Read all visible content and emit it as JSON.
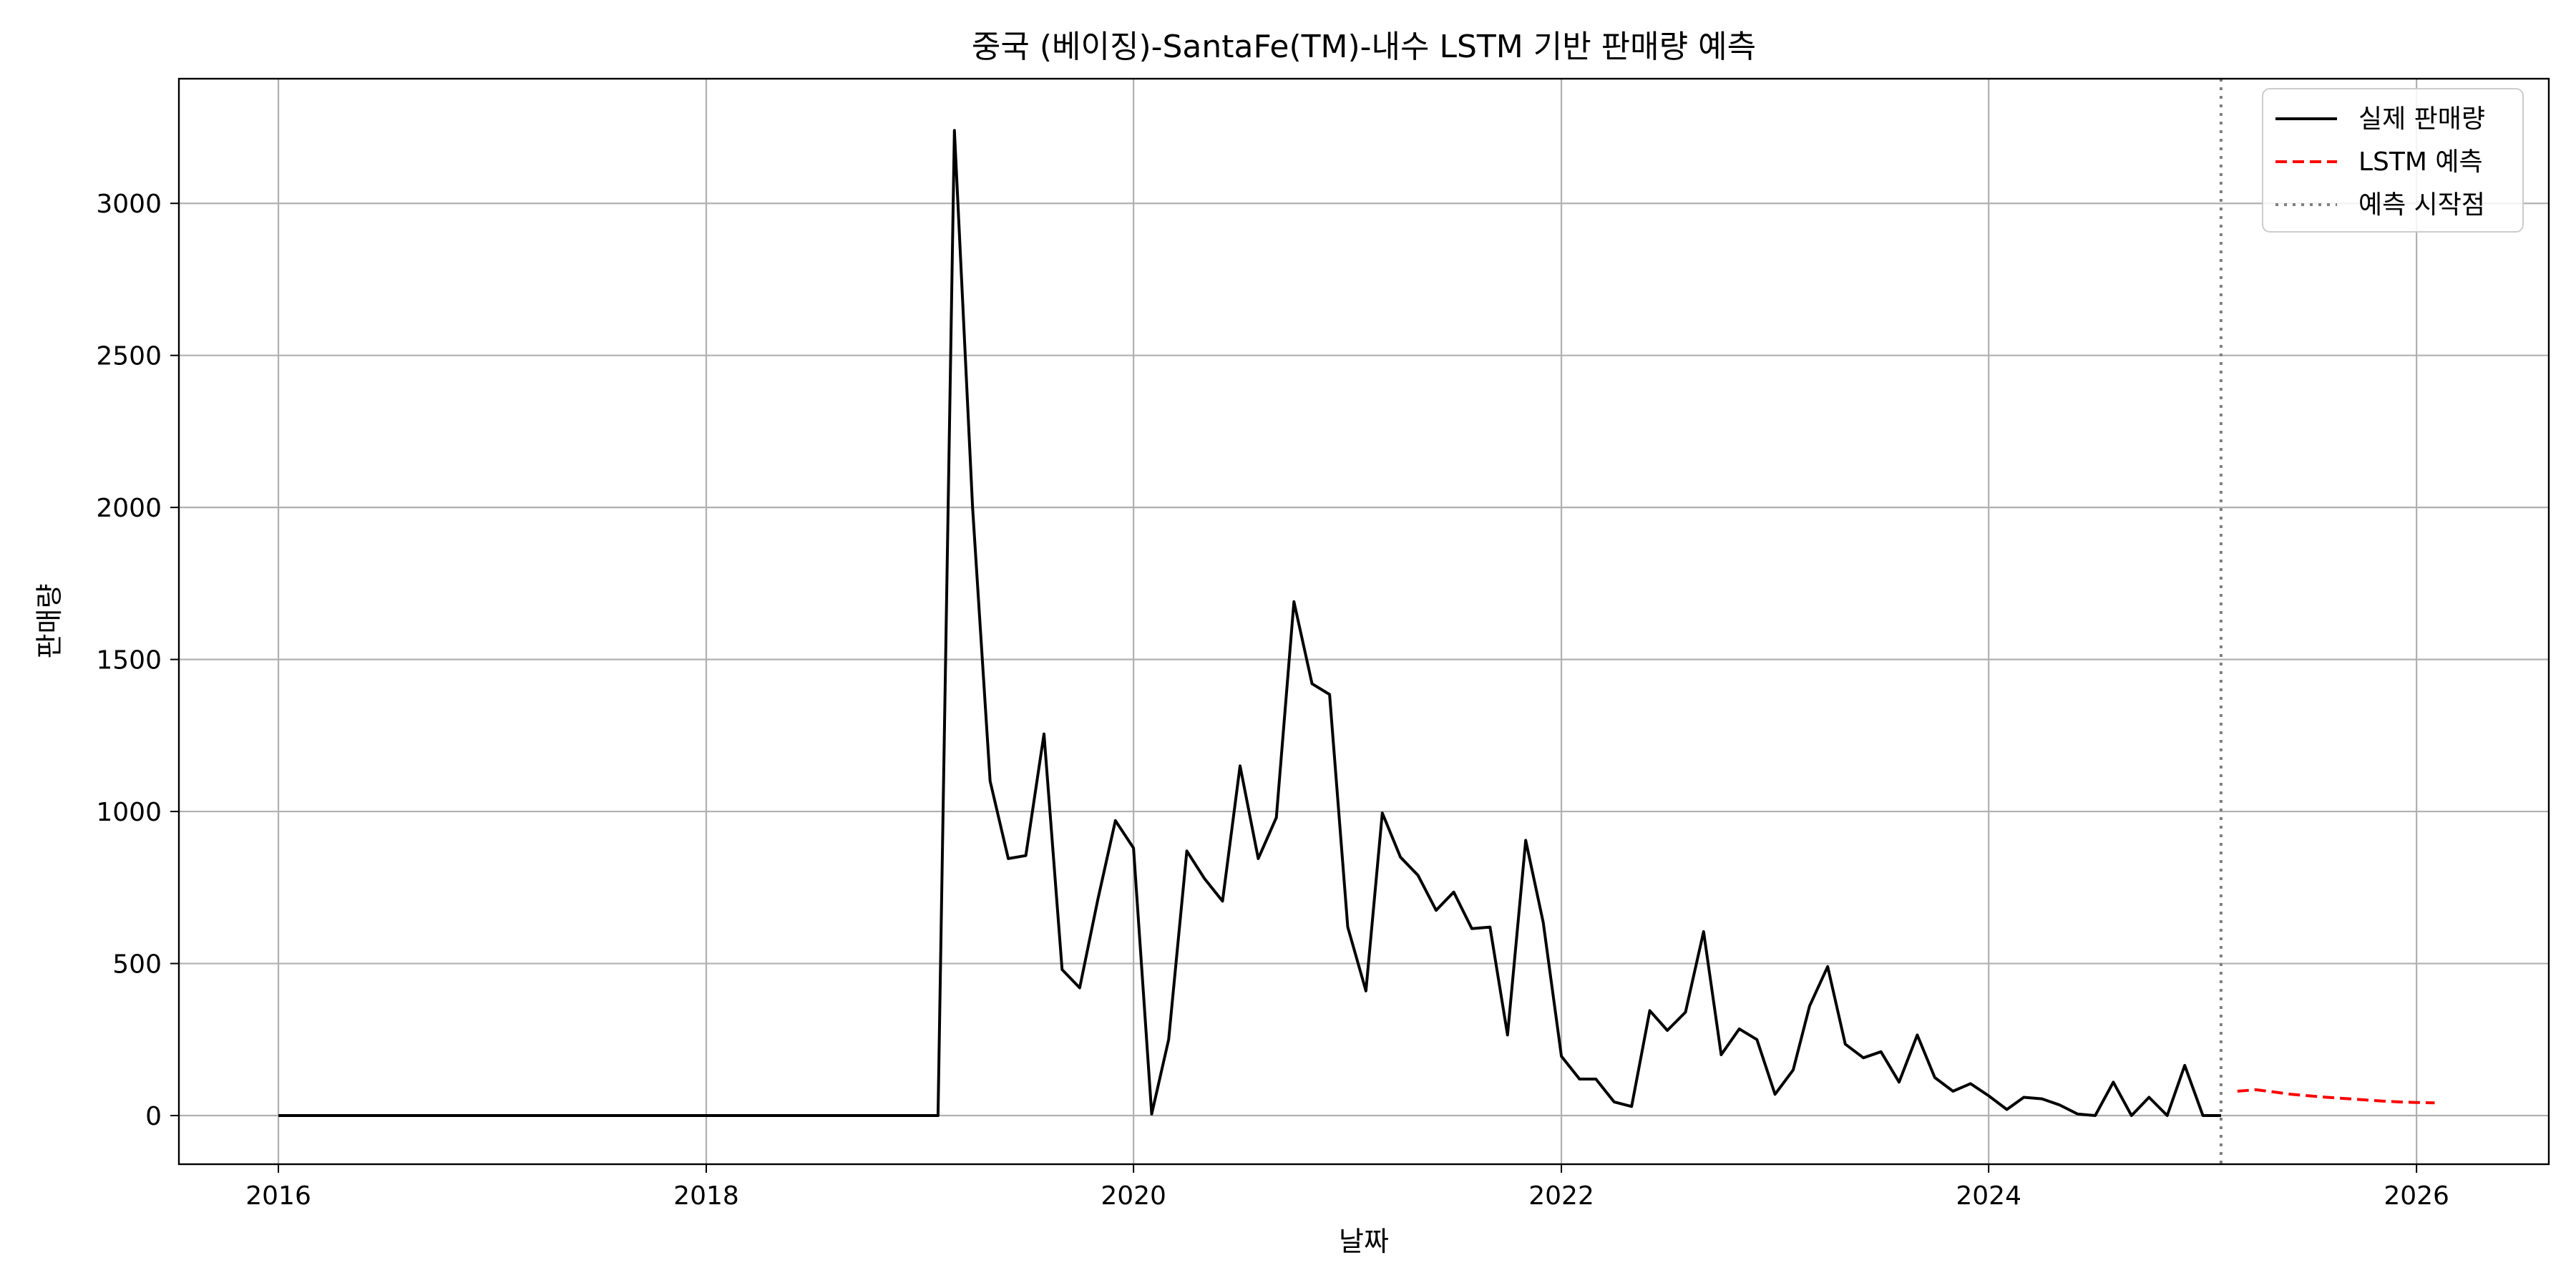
{
  "chart_data": {
    "type": "line",
    "title": "중국 (베이징)-SantaFe(TM)-내수 LSTM 기반 판매량 예측",
    "xlabel": "날짜",
    "ylabel": "판매량",
    "xlim": [
      "2015-07-15",
      "2026-08-15"
    ],
    "ylim": [
      -160,
      3410
    ],
    "x_ticks": [
      "2016",
      "2018",
      "2020",
      "2022",
      "2024",
      "2026"
    ],
    "x_tick_dates": [
      "2016-01-01",
      "2018-01-01",
      "2020-01-01",
      "2022-01-01",
      "2024-01-01",
      "2026-01-01"
    ],
    "y_ticks": [
      0,
      500,
      1000,
      1500,
      2000,
      2500,
      3000
    ],
    "grid": true,
    "legend_position": "top-right",
    "forecast_start": "2025-02-01",
    "colors": {
      "actual": "#000000",
      "forecast": "#ff0000",
      "forecast_start": "#808080"
    },
    "series": [
      {
        "name": "실제 판매량",
        "style": "solid",
        "x": [
          "2016-01",
          "2016-02",
          "2016-03",
          "2016-04",
          "2016-05",
          "2016-06",
          "2016-07",
          "2016-08",
          "2016-09",
          "2016-10",
          "2016-11",
          "2016-12",
          "2017-01",
          "2017-02",
          "2017-03",
          "2017-04",
          "2017-05",
          "2017-06",
          "2017-07",
          "2017-08",
          "2017-09",
          "2017-10",
          "2017-11",
          "2017-12",
          "2018-01",
          "2018-02",
          "2018-03",
          "2018-04",
          "2018-05",
          "2018-06",
          "2018-07",
          "2018-08",
          "2018-09",
          "2018-10",
          "2018-11",
          "2018-12",
          "2019-01",
          "2019-02",
          "2019-03",
          "2019-04",
          "2019-05",
          "2019-06",
          "2019-07",
          "2019-08",
          "2019-09",
          "2019-10",
          "2019-11",
          "2019-12",
          "2020-01",
          "2020-02",
          "2020-03",
          "2020-04",
          "2020-05",
          "2020-06",
          "2020-07",
          "2020-08",
          "2020-09",
          "2020-10",
          "2020-11",
          "2020-12",
          "2021-01",
          "2021-02",
          "2021-03",
          "2021-04",
          "2021-05",
          "2021-06",
          "2021-07",
          "2021-08",
          "2021-09",
          "2021-10",
          "2021-11",
          "2021-12",
          "2022-01",
          "2022-02",
          "2022-03",
          "2022-04",
          "2022-05",
          "2022-06",
          "2022-07",
          "2022-08",
          "2022-09",
          "2022-10",
          "2022-11",
          "2022-12",
          "2023-01",
          "2023-02",
          "2023-03",
          "2023-04",
          "2023-05",
          "2023-06",
          "2023-07",
          "2023-08",
          "2023-09",
          "2023-10",
          "2023-11",
          "2023-12",
          "2024-01",
          "2024-02",
          "2024-03",
          "2024-04",
          "2024-05",
          "2024-06",
          "2024-07",
          "2024-08",
          "2024-09",
          "2024-10",
          "2024-11",
          "2024-12",
          "2025-01",
          "2025-02"
        ],
        "values": [
          0,
          0,
          0,
          0,
          0,
          0,
          0,
          0,
          0,
          0,
          0,
          0,
          0,
          0,
          0,
          0,
          0,
          0,
          0,
          0,
          0,
          0,
          0,
          0,
          0,
          0,
          0,
          0,
          0,
          0,
          0,
          0,
          0,
          0,
          0,
          0,
          0,
          0,
          3240,
          2000,
          1100,
          845,
          855,
          1255,
          480,
          420,
          710,
          970,
          880,
          5,
          250,
          870,
          780,
          705,
          1150,
          845,
          980,
          1690,
          1420,
          1385,
          620,
          410,
          995,
          850,
          790,
          675,
          735,
          615,
          620,
          265,
          905,
          635,
          195,
          120,
          120,
          45,
          30,
          345,
          280,
          340,
          605,
          200,
          285,
          250,
          70,
          150,
          360,
          490,
          235,
          190,
          210,
          110,
          265,
          125,
          80,
          105,
          65,
          20,
          60,
          55,
          35,
          5,
          0,
          110,
          0,
          60,
          0,
          165,
          0,
          0
        ]
      },
      {
        "name": "LSTM 예측",
        "style": "dashed",
        "x": [
          "2025-03",
          "2025-04",
          "2025-05",
          "2025-06",
          "2025-07",
          "2025-08",
          "2025-09",
          "2025-10",
          "2025-11",
          "2025-12",
          "2026-01",
          "2026-02"
        ],
        "values": [
          80,
          85,
          78,
          70,
          65,
          60,
          56,
          52,
          48,
          45,
          43,
          42
        ]
      }
    ],
    "legend": [
      {
        "label": "실제 판매량",
        "style": "solid"
      },
      {
        "label": "LSTM 예측",
        "style": "dashed"
      },
      {
        "label": "예측 시작점",
        "style": "dotted"
      }
    ]
  }
}
